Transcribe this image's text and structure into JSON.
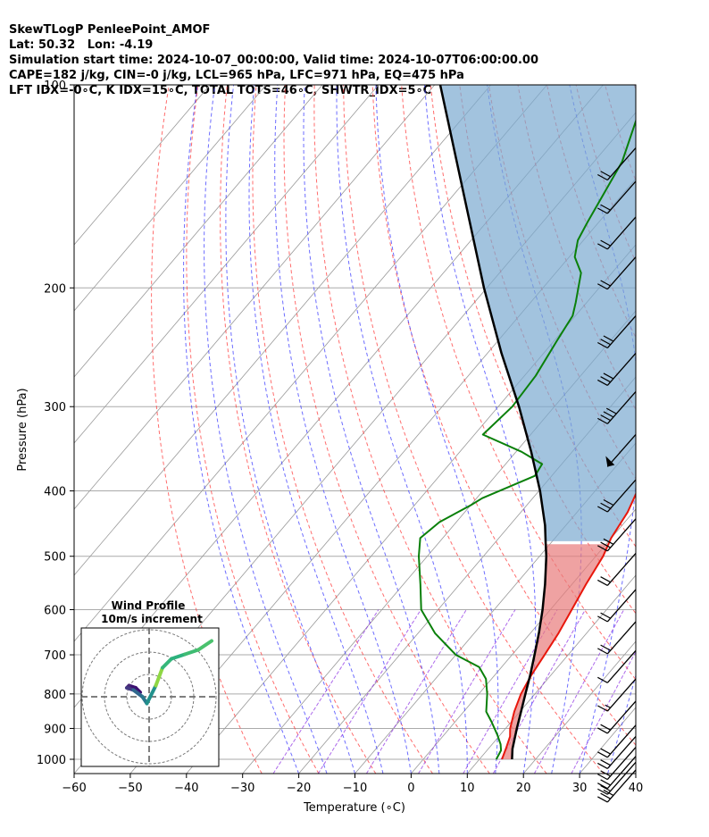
{
  "header": {
    "line1": "SkewTLogP PenleePoint_AMOF",
    "line2": "Lat: 50.32   Lon: -4.19",
    "line3": "Simulation start time: 2024-10-07_00:00:00, Valid time: 2024-10-07T06:00:00.00",
    "line4": "CAPE=182 j/kg, CIN=-0 j/kg, LCL=965 hPa, LFC=971 hPa, EQ=475 hPa",
    "line5": "LFT IDX=-0∘C, K IDX=15∘C, TOTAL TOTS=46∘C, SHWTR_IDX=5∘C"
  },
  "chart_data": {
    "type": "skew-t log-p",
    "xlabel": "Temperature (∘C)",
    "ylabel": "Pressure (hPa)",
    "xlim": [
      -60,
      40
    ],
    "ylim_hpa": [
      1050,
      100
    ],
    "y_scale": "log",
    "x_ticks": [
      -60,
      -50,
      -40,
      -30,
      -20,
      -10,
      0,
      10,
      20,
      30,
      40
    ],
    "y_ticks": [
      100,
      200,
      300,
      400,
      500,
      600,
      700,
      800,
      900,
      1000
    ],
    "colors": {
      "temperature": "#e8170c",
      "dewpoint": "#0a800a",
      "parcel": "#000000",
      "cape_fill": "#7aaad0",
      "cin_fill": "#e87a7a",
      "dry_adiabat": "#ff3c3c",
      "moist_adiabat": "#3c3cff",
      "mixing_ratio": "#8a2be2",
      "isotherm": "#999999",
      "isobar": "#aaaaaa"
    },
    "series": [
      {
        "name": "temperature",
        "points": [
          [
            1000,
            14.0
          ],
          [
            960,
            13.0
          ],
          [
            925,
            12.0
          ],
          [
            900,
            10.8
          ],
          [
            850,
            9.0
          ],
          [
            800,
            7.5
          ],
          [
            750,
            6.5
          ],
          [
            700,
            5.8
          ],
          [
            650,
            5.0
          ],
          [
            600,
            3.8
          ],
          [
            550,
            2.5
          ],
          [
            500,
            1.3
          ],
          [
            470,
            0.0
          ],
          [
            430,
            -1.0
          ],
          [
            400,
            -2.5
          ],
          [
            370,
            -4.5
          ],
          [
            350,
            -6.0
          ],
          [
            320,
            -7.8
          ],
          [
            300,
            -9.0
          ],
          [
            280,
            -10.3
          ],
          [
            260,
            -11.5
          ],
          [
            240,
            -12.5
          ],
          [
            220,
            -13.5
          ],
          [
            210,
            -14.5
          ],
          [
            200,
            -14.8
          ],
          [
            190,
            -15.5
          ],
          [
            170,
            -16.0
          ],
          [
            150,
            -17.0
          ],
          [
            130,
            -20.0
          ],
          [
            110,
            -22.0
          ],
          [
            100,
            -23.0
          ]
        ]
      },
      {
        "name": "dewpoint",
        "points": [
          [
            1000,
            13.0
          ],
          [
            970,
            12.5
          ],
          [
            950,
            11.5
          ],
          [
            920,
            9.5
          ],
          [
            880,
            6.5
          ],
          [
            850,
            4.0
          ],
          [
            800,
            1.5
          ],
          [
            760,
            -1.0
          ],
          [
            730,
            -4.0
          ],
          [
            700,
            -10.0
          ],
          [
            650,
            -17.0
          ],
          [
            600,
            -23.0
          ],
          [
            550,
            -27.0
          ],
          [
            500,
            -31.5
          ],
          [
            470,
            -34.0
          ],
          [
            445,
            -33.0
          ],
          [
            420,
            -30.0
          ],
          [
            410,
            -29.0
          ],
          [
            380,
            -23.0
          ],
          [
            365,
            -23.5
          ],
          [
            350,
            -29.0
          ],
          [
            330,
            -38.5
          ],
          [
            300,
            -37.5
          ],
          [
            270,
            -38.0
          ],
          [
            240,
            -39.5
          ],
          [
            220,
            -40.5
          ],
          [
            210,
            -42.0
          ],
          [
            190,
            -45.5
          ],
          [
            180,
            -49.0
          ],
          [
            170,
            -51.0
          ],
          [
            160,
            -52.0
          ],
          [
            130,
            -55.0
          ],
          [
            100,
            -62.0
          ]
        ]
      },
      {
        "name": "parcel",
        "points": [
          [
            1000,
            15.8
          ],
          [
            965,
            14.3
          ],
          [
            900,
            12.0
          ],
          [
            850,
            10.2
          ],
          [
            800,
            8.3
          ],
          [
            750,
            6.3
          ],
          [
            700,
            4.0
          ],
          [
            650,
            1.5
          ],
          [
            600,
            -1.4
          ],
          [
            550,
            -4.8
          ],
          [
            500,
            -8.8
          ],
          [
            475,
            -11.2
          ],
          [
            450,
            -13.7
          ],
          [
            400,
            -19.8
          ],
          [
            350,
            -27.3
          ],
          [
            300,
            -36.3
          ],
          [
            250,
            -47.5
          ],
          [
            200,
            -60.5
          ],
          [
            150,
            -76.5
          ],
          [
            100,
            -99.0
          ]
        ]
      }
    ],
    "wind_barbs": [
      {
        "p": 1037,
        "barbs": "3 full"
      },
      {
        "p": 1010,
        "barbs": "2 full"
      },
      {
        "p": 990,
        "barbs": "2 full"
      },
      {
        "p": 960,
        "barbs": "2 full"
      },
      {
        "p": 925,
        "barbs": "2 full"
      },
      {
        "p": 890,
        "barbs": "2 full"
      },
      {
        "p": 820,
        "barbs": "2 full"
      },
      {
        "p": 760,
        "barbs": "1 full, 1 half"
      },
      {
        "p": 690,
        "barbs": "1 full"
      },
      {
        "p": 625,
        "barbs": "2 full"
      },
      {
        "p": 560,
        "barbs": "2 full"
      },
      {
        "p": 495,
        "barbs": "2 full"
      },
      {
        "p": 440,
        "barbs": "3 full"
      },
      {
        "p": 385,
        "barbs": "3 full"
      },
      {
        "p": 330,
        "barbs": "pennant"
      },
      {
        "p": 285,
        "barbs": "4 full"
      },
      {
        "p": 250,
        "barbs": "3 full"
      },
      {
        "p": 220,
        "barbs": "3 full"
      },
      {
        "p": 180,
        "barbs": "2 full"
      },
      {
        "p": 157,
        "barbs": "2 full"
      },
      {
        "p": 139,
        "barbs": "2 full"
      },
      {
        "p": 124,
        "barbs": "2 full"
      }
    ],
    "inset": {
      "title_line1": "Wind Profile",
      "title_line2": "10m/s increment",
      "ring_radii_ms": [
        10,
        20,
        30
      ],
      "hodograph": [
        [
          -4,
          2
        ],
        [
          -6,
          4
        ],
        [
          -9,
          5
        ],
        [
          -10,
          4
        ],
        [
          -7,
          3
        ],
        [
          -3,
          0
        ],
        [
          -1,
          -3
        ],
        [
          3,
          5
        ],
        [
          6,
          13
        ],
        [
          10,
          17
        ],
        [
          16,
          19
        ],
        [
          22,
          21
        ],
        [
          28,
          25
        ]
      ]
    }
  }
}
